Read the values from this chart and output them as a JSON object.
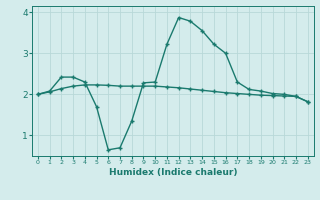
{
  "xlabel": "Humidex (Indice chaleur)",
  "background_color": "#d4ecec",
  "line_color": "#1a7a6e",
  "grid_color": "#b8d8d8",
  "x": [
    0,
    1,
    2,
    3,
    4,
    5,
    6,
    7,
    8,
    9,
    10,
    11,
    12,
    13,
    14,
    15,
    16,
    17,
    18,
    19,
    20,
    21,
    22,
    23
  ],
  "line1": [
    2.0,
    2.08,
    2.42,
    2.42,
    2.3,
    1.7,
    0.65,
    0.7,
    1.35,
    2.28,
    2.3,
    3.22,
    3.87,
    3.78,
    3.55,
    3.22,
    3.0,
    2.3,
    2.12,
    2.08,
    2.02,
    2.0,
    1.95,
    1.82
  ],
  "line2": [
    2.0,
    2.06,
    2.14,
    2.2,
    2.23,
    2.23,
    2.22,
    2.2,
    2.2,
    2.2,
    2.2,
    2.18,
    2.16,
    2.13,
    2.1,
    2.07,
    2.04,
    2.02,
    2.0,
    1.98,
    1.97,
    1.96,
    1.95,
    1.82
  ],
  "ylim": [
    0.5,
    4.15
  ],
  "xlim": [
    -0.5,
    23.5
  ],
  "yticks": [
    1,
    2,
    3,
    4
  ],
  "xticks": [
    0,
    1,
    2,
    3,
    4,
    5,
    6,
    7,
    8,
    9,
    10,
    11,
    12,
    13,
    14,
    15,
    16,
    17,
    18,
    19,
    20,
    21,
    22,
    23
  ],
  "marker": "+",
  "markersize": 3.5,
  "linewidth": 1.0
}
